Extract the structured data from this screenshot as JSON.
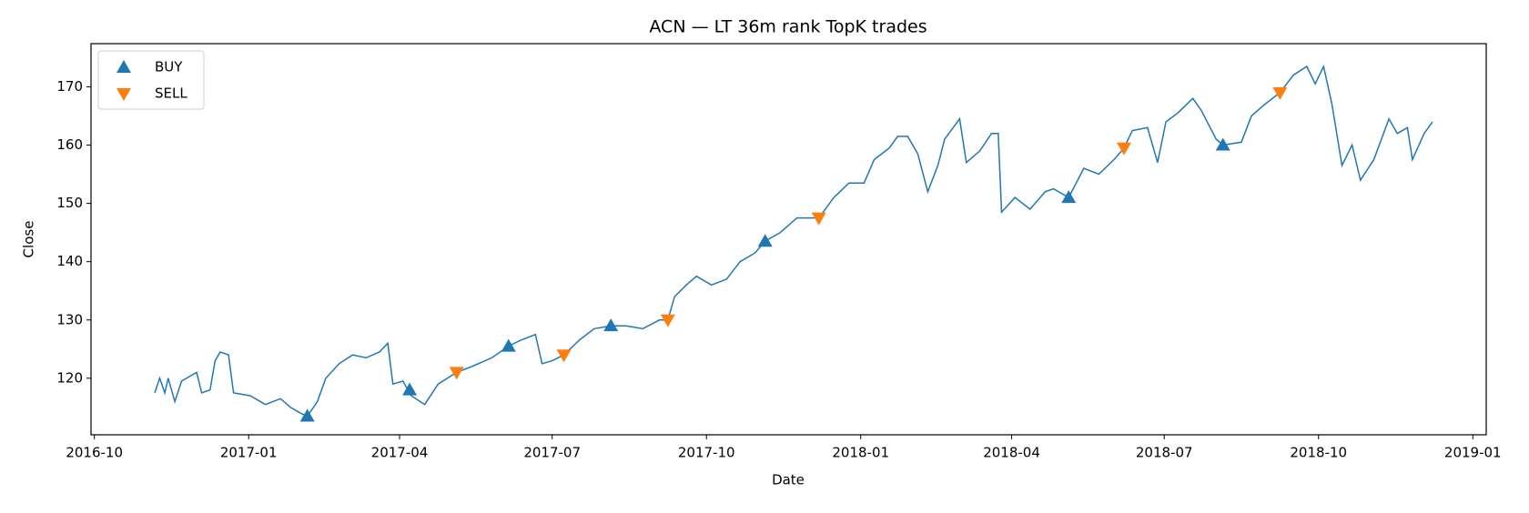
{
  "chart_data": {
    "type": "line",
    "title": "ACN — LT 36m rank TopK trades",
    "x_label": "Date",
    "y_label": "Close",
    "x": [
      "2016-11-06",
      "2016-11-09",
      "2016-11-12",
      "2016-11-14",
      "2016-11-18",
      "2016-11-22",
      "2016-12-01",
      "2016-12-04",
      "2016-12-09",
      "2016-12-12",
      "2016-12-15",
      "2016-12-20",
      "2016-12-23",
      "2017-01-02",
      "2017-01-11",
      "2017-01-20",
      "2017-01-26",
      "2017-02-01",
      "2017-02-05",
      "2017-02-11",
      "2017-02-16",
      "2017-02-24",
      "2017-03-04",
      "2017-03-12",
      "2017-03-20",
      "2017-03-25",
      "2017-03-28",
      "2017-04-03",
      "2017-04-08",
      "2017-04-16",
      "2017-04-24",
      "2017-05-05",
      "2017-05-14",
      "2017-05-26",
      "2017-06-05",
      "2017-06-12",
      "2017-06-21",
      "2017-06-25",
      "2017-07-01",
      "2017-07-08",
      "2017-07-17",
      "2017-07-26",
      "2017-08-05",
      "2017-08-14",
      "2017-08-24",
      "2017-09-03",
      "2017-09-08",
      "2017-09-12",
      "2017-09-19",
      "2017-09-25",
      "2017-10-04",
      "2017-10-13",
      "2017-10-21",
      "2017-10-30",
      "2017-11-05",
      "2017-11-14",
      "2017-11-24",
      "2017-12-07",
      "2017-12-16",
      "2017-12-25",
      "2018-01-03",
      "2018-01-09",
      "2018-01-18",
      "2018-01-23",
      "2018-01-29",
      "2018-02-04",
      "2018-02-10",
      "2018-02-16",
      "2018-02-20",
      "2018-03-01",
      "2018-03-05",
      "2018-03-13",
      "2018-03-20",
      "2018-03-24",
      "2018-03-26",
      "2018-04-03",
      "2018-04-12",
      "2018-04-21",
      "2018-04-26",
      "2018-05-05",
      "2018-05-14",
      "2018-05-23",
      "2018-06-01",
      "2018-06-07",
      "2018-06-12",
      "2018-06-21",
      "2018-06-27",
      "2018-07-02",
      "2018-07-09",
      "2018-07-18",
      "2018-07-23",
      "2018-08-01",
      "2018-08-05",
      "2018-08-16",
      "2018-08-22",
      "2018-08-30",
      "2018-09-08",
      "2018-09-16",
      "2018-09-24",
      "2018-09-29",
      "2018-10-04",
      "2018-10-09",
      "2018-10-15",
      "2018-10-21",
      "2018-10-26",
      "2018-11-03",
      "2018-11-12",
      "2018-11-17",
      "2018-11-23",
      "2018-11-26",
      "2018-12-03",
      "2018-12-08"
    ],
    "series": [
      {
        "name": "Close",
        "color": "#1f77b4",
        "values": [
          117.5,
          120,
          117.5,
          120,
          116,
          119.5,
          121,
          117.5,
          118,
          123,
          124.5,
          124,
          117.5,
          117,
          115.5,
          116.5,
          115,
          114,
          113.5,
          116,
          120,
          122.5,
          124,
          123.5,
          124.5,
          126,
          119,
          119.5,
          117,
          115.5,
          119,
          121,
          122,
          123.5,
          125.5,
          126.5,
          127.5,
          122.5,
          123,
          124,
          126.5,
          128.5,
          129,
          129,
          128.5,
          130,
          130,
          134,
          136,
          137.5,
          136,
          137,
          140,
          141.5,
          143.5,
          145,
          147.5,
          147.5,
          151,
          153.5,
          153.5,
          157.5,
          159.5,
          161.5,
          161.5,
          158.5,
          152,
          156.5,
          161,
          164.5,
          157,
          159,
          162,
          162,
          148.5,
          151,
          149,
          152,
          152.5,
          151,
          156,
          155,
          157.5,
          159.5,
          162.5,
          163,
          157,
          164,
          165.5,
          168,
          166,
          161,
          160,
          160.5,
          165,
          167,
          169,
          172,
          173.5,
          170.5,
          173.5,
          167,
          156.5,
          160,
          154,
          157.5,
          164.5,
          162,
          163,
          157.5,
          162,
          164
        ]
      }
    ],
    "markers": [
      {
        "name": "BUY",
        "color": "#1f77b4",
        "marker": "triangle-up",
        "x": [
          "2017-02-05",
          "2017-04-07",
          "2017-06-05",
          "2017-08-05",
          "2017-11-05",
          "2018-05-05",
          "2018-08-05"
        ],
        "values": [
          113.5,
          118,
          125.5,
          129,
          143.5,
          151,
          160
        ]
      },
      {
        "name": "SELL",
        "color": "#ff7f0e",
        "marker": "triangle-down",
        "x": [
          "2017-05-05",
          "2017-07-08",
          "2017-09-08",
          "2017-12-07",
          "2018-06-07",
          "2018-09-08"
        ],
        "values": [
          121,
          124,
          130,
          147.5,
          159.5,
          169
        ]
      }
    ],
    "xlim": [
      "2016-09-29",
      "2019-01-09"
    ],
    "xticks": [
      "2016-10",
      "2017-01",
      "2017-04",
      "2017-07",
      "2017-10",
      "2018-01",
      "2018-04",
      "2018-07",
      "2018-10",
      "2019-01"
    ],
    "ylim": [
      110.3,
      177.4
    ],
    "yticks": [
      120,
      130,
      140,
      150,
      160,
      170
    ],
    "grid": false,
    "legend": "upper left"
  }
}
